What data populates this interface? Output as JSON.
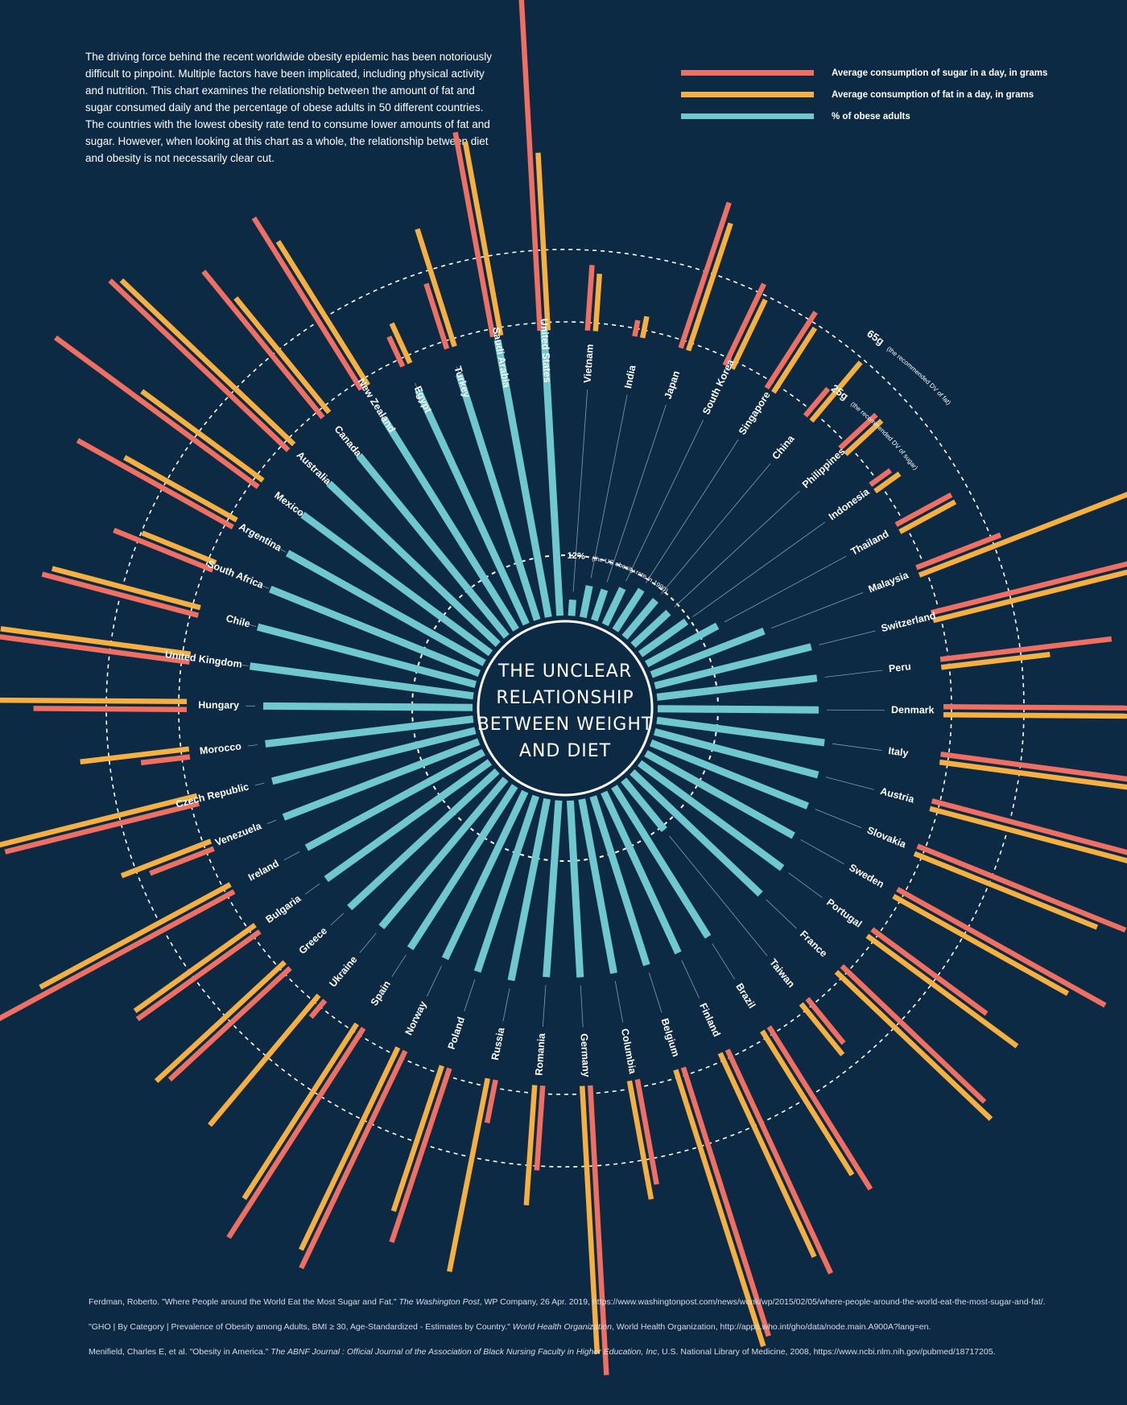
{
  "intro": "The driving force behind the recent worldwide obesity epidemic has been notoriously difficult to pinpoint. Multiple factors have been implicated, including physical activity and nutrition.  This chart examines the relationship between the amount of fat and sugar consumed daily and the percentage of obese adults in 50 different countries. The countries with the lowest obesity rate tend to consume lower amounts of fat and sugar. However,  when looking at this chart as a whole, the relationship between diet and obesity is not necessarily clear cut.",
  "legend": [
    {
      "label": "Average consumption of sugar in a day, in grams",
      "color": "#ef6f62"
    },
    {
      "label": "Average consumption of fat in a day, in grams",
      "color": "#f6b042"
    },
    {
      "label": "% of obese adults",
      "color": "#6fc7cf"
    }
  ],
  "center_title": [
    "THE UNCLEAR",
    "RELATIONSHIP",
    "BETWEEN WEIGHT",
    "AND DIET"
  ],
  "references": [
    {
      "before": "Ferdman, Roberto. \"Where People around the World Eat the Most Sugar and Fat.\" ",
      "italic": "The Washington Post",
      "after": ", WP Company, 26 Apr. 2019, https://www.washingtonpost.com/news/wonk/wp/2015/02/05/where-people-around-the-world-eat-the-most-sugar-and-fat/."
    },
    {
      "before": "\"GHO | By Category | Prevalence of Obesity among Adults, BMI ≥ 30, Age-Standardized - Estimates by Country.\" ",
      "italic": "World Health Organization",
      "after": ", World Health Organization, http://apps.who.int/gho/data/node.main.A900A?lang=en."
    },
    {
      "before": "Menifield, Charles E, et al. \"Obesity in America.\" ",
      "italic": "The ABNF Journal : Official Journal of the Association of Black Nursing Faculty in Higher Education, Inc",
      "after": ", U.S. National Library of Medicine, 2008, https://www.ncbi.nlm.nih.gov/pubmed/18717205."
    }
  ],
  "chart_data": {
    "type": "radial-bar",
    "reference_rings": [
      {
        "bold": "12%",
        "note": "(the US obesity rate in 1990)"
      },
      {
        "bold": "25g",
        "note": "(the recommended DV of sugar)"
      },
      {
        "bold": "65g",
        "note": "(the recommended DV of fat)"
      }
    ],
    "series": [
      {
        "name": "Average consumption of sugar in a day, in grams",
        "key": "sugar",
        "color": "#ef6f62"
      },
      {
        "name": "Average consumption of fat in a day, in grams",
        "key": "fat",
        "color": "#f6b042"
      },
      {
        "name": "% of obese adults",
        "key": "obesity",
        "color": "#6fc7cf"
      }
    ],
    "countries": [
      {
        "name": "Vietnam",
        "obesity": 2,
        "sugar": 24,
        "fat": 21
      },
      {
        "name": "India",
        "obesity": 4,
        "sugar": 6,
        "fat": 8
      },
      {
        "name": "Japan",
        "obesity": 4,
        "sugar": 56,
        "fat": 49
      },
      {
        "name": "South Korea",
        "obesity": 5,
        "sugar": 33,
        "fat": 28
      },
      {
        "name": "Singapore",
        "obesity": 6,
        "sugar": 33,
        "fat": 28
      },
      {
        "name": "China",
        "obesity": 6,
        "sugar": 13,
        "fat": 28
      },
      {
        "name": "Philippines",
        "obesity": 6,
        "sugar": 18,
        "fat": 18
      },
      {
        "name": "Indonesia",
        "obesity": 7,
        "sugar": 9,
        "fat": 11
      },
      {
        "name": "Thailand",
        "obesity": 10,
        "sugar": 23,
        "fat": 23
      },
      {
        "name": "Malaysia",
        "obesity": 15,
        "sugar": 33,
        "fat": 86
      },
      {
        "name": "Switzerland",
        "obesity": 20,
        "sugar": 88,
        "fat": 84
      },
      {
        "name": "Peru",
        "obesity": 20,
        "sugar": 63,
        "fat": 40
      },
      {
        "name": "Denmark",
        "obesity": 20,
        "sugar": 92,
        "fat": 88
      },
      {
        "name": "Italy",
        "obesity": 21,
        "sugar": 72,
        "fat": 85
      },
      {
        "name": "Austria",
        "obesity": 21,
        "sugar": 98,
        "fat": 80
      },
      {
        "name": "Slovakia",
        "obesity": 21,
        "sugar": 82,
        "fat": 72
      },
      {
        "name": "Sweden",
        "obesity": 21,
        "sugar": 87,
        "fat": 73
      },
      {
        "name": "Portugal",
        "obesity": 22,
        "sugar": 52,
        "fat": 68
      },
      {
        "name": "France",
        "obesity": 22,
        "sugar": 72,
        "fat": 78
      },
      {
        "name": "Taiwan",
        "obesity": 8,
        "sugar": 21,
        "fat": 24
      },
      {
        "name": "Brazil",
        "obesity": 22,
        "sugar": 70,
        "fat": 62
      },
      {
        "name": "Finland",
        "obesity": 22,
        "sugar": 90,
        "fat": 82
      },
      {
        "name": "Belgium",
        "obesity": 22,
        "sugar": 103,
        "fat": 106
      },
      {
        "name": "Columbia",
        "obesity": 22,
        "sugar": 39,
        "fat": 44
      },
      {
        "name": "Germany",
        "obesity": 22,
        "sugar": 106,
        "fat": 98
      },
      {
        "name": "Romania",
        "obesity": 22,
        "sugar": 31,
        "fat": 44
      },
      {
        "name": "Russia",
        "obesity": 23,
        "sugar": 16,
        "fat": 72
      },
      {
        "name": "Poland",
        "obesity": 23,
        "sugar": 67,
        "fat": 56
      },
      {
        "name": "Norway",
        "obesity": 23,
        "sugar": 88,
        "fat": 82
      },
      {
        "name": "Spain",
        "obesity": 24,
        "sugar": 91,
        "fat": 76
      },
      {
        "name": "Ukraine",
        "obesity": 24,
        "sugar": 8,
        "fat": 62
      },
      {
        "name": "Greece",
        "obesity": 25,
        "sugar": 60,
        "fat": 64
      },
      {
        "name": "Bulgaria",
        "obesity": 25,
        "sugar": 55,
        "fat": 54
      },
      {
        "name": "Ireland",
        "obesity": 25,
        "sugar": 106,
        "fat": 79
      },
      {
        "name": "Venezuela",
        "obesity": 26,
        "sugar": 25,
        "fat": 35
      },
      {
        "name": "Czech Republic",
        "obesity": 26,
        "sugar": 73,
        "fat": 75
      },
      {
        "name": "Morocco",
        "obesity": 26,
        "sugar": 18,
        "fat": 40
      },
      {
        "name": "Hungary",
        "obesity": 26,
        "sugar": 56,
        "fat": 70
      },
      {
        "name": "United Kingdom",
        "obesity": 28,
        "sugar": 93,
        "fat": 70
      },
      {
        "name": "Chile",
        "obesity": 28,
        "sugar": 59,
        "fat": 56
      },
      {
        "name": "South Africa",
        "obesity": 28,
        "sugar": 39,
        "fat": 29
      },
      {
        "name": "Argentina",
        "obesity": 28,
        "sugar": 65,
        "fat": 47
      },
      {
        "name": "Mexico",
        "obesity": 29,
        "sugar": 92,
        "fat": 55
      },
      {
        "name": "Australia",
        "obesity": 29,
        "sugar": 90,
        "fat": 87
      },
      {
        "name": "Canada",
        "obesity": 29,
        "sugar": 69,
        "fat": 54
      },
      {
        "name": "New Zealand",
        "obesity": 31,
        "sugar": 74,
        "fat": 62
      },
      {
        "name": "Egypt",
        "obesity": 32,
        "sugar": 12,
        "fat": 16
      },
      {
        "name": "Turkey",
        "obesity": 32,
        "sugar": 25,
        "fat": 45
      },
      {
        "name": "Saudi Arabia",
        "obesity": 35,
        "sugar": 76,
        "fat": 72
      },
      {
        "name": "United States",
        "obesity": 36,
        "sugar": 126,
        "fat": 65
      }
    ]
  }
}
